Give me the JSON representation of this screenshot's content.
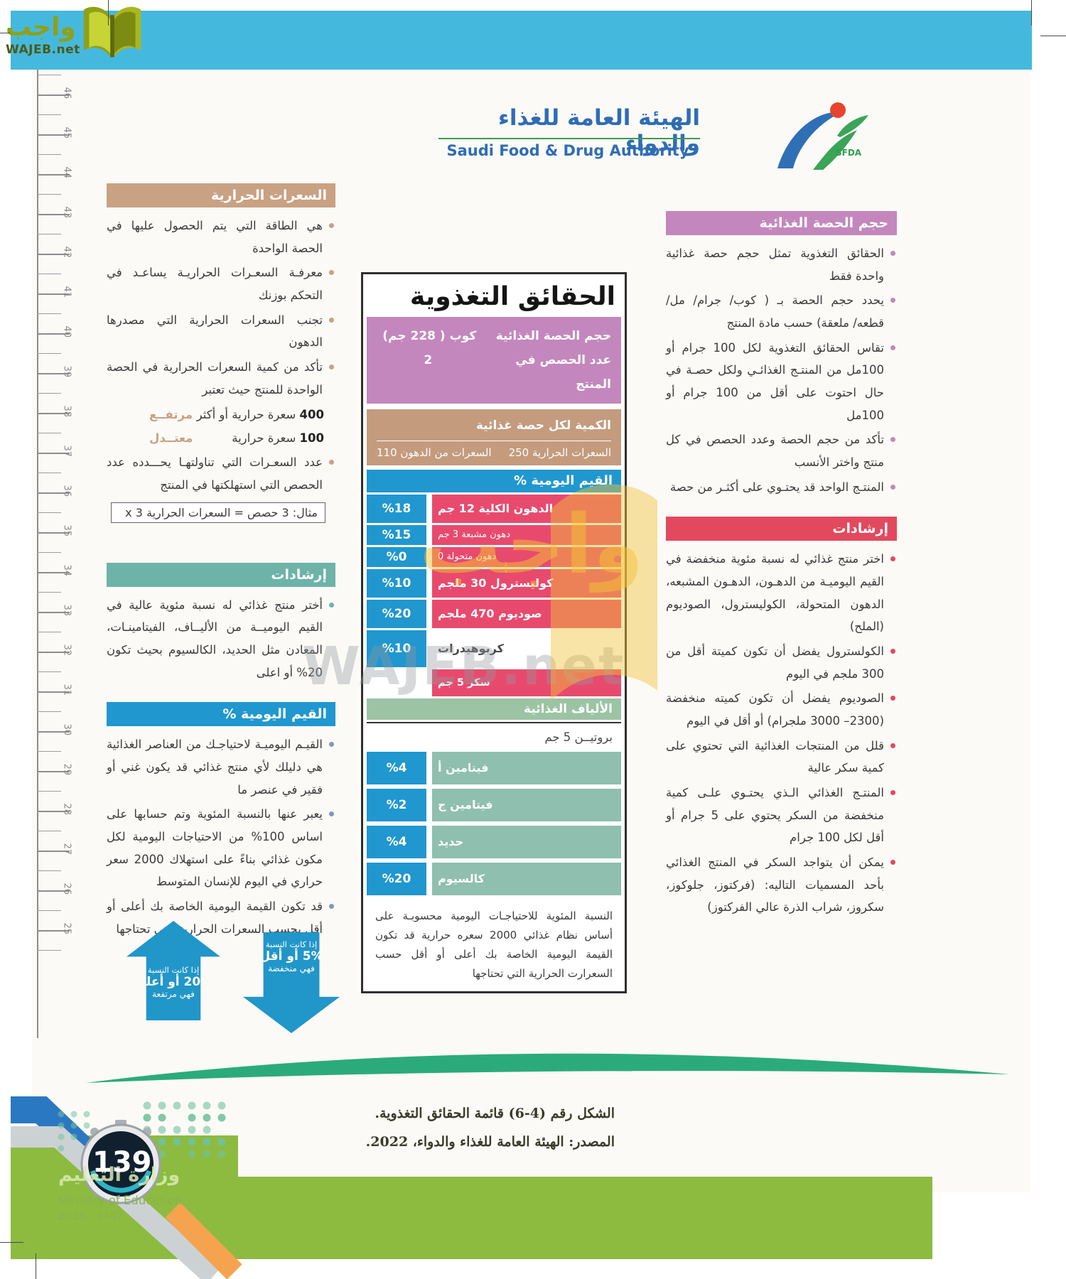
{
  "colors": {
    "topbar": "#45b9dd",
    "tan": "#c9a183",
    "teal": "#6db3a8",
    "blue": "#2097cf",
    "orchid": "#c387bd",
    "row_pink": "#e84a6e",
    "red": "#e2495e",
    "vit_green": "#8fbfae",
    "fiber_green": "#9cc3a4",
    "label_tan": "#c49b7d",
    "lens_green": "#2bab7c",
    "footer_green": "#8cbb40",
    "sfda_blue": "#2e6db4",
    "arrow_blue": "#2196c9"
  },
  "watermark": {
    "arabic": "واجب",
    "domain": "WAJEB.net"
  },
  "topbar": {
    "logo_arabic": "واجب",
    "logo_domain": "WAJEB.net"
  },
  "sfda": {
    "title_ar": "الهيئة العامة للغذاء والدواء",
    "title_en": "Saudi Food & Drug Authority",
    "logo_text": "SFDA"
  },
  "ruler": {
    "start": 46,
    "end": 25
  },
  "left_column": {
    "calories": {
      "title": "السعرات الحرارية",
      "bullets": [
        "هي الطاقة التي يتم الحصول عليها في الحصة الواحدة",
        "معرفـة السعـرات الحراريـة يساعـد في التحكم بوزنك",
        "تجنب السعرات الحرارية التي مصدرها الدهون",
        "تأكد من كمية السعرات الحرارية في الحصة الواحدة للمنتج حيث تعتبر"
      ],
      "ratings": [
        {
          "amount": "400",
          "unit": "سعرة حرارية أو أكثر",
          "level": "مرتفــع"
        },
        {
          "amount": "100",
          "unit": "سعرة حرارية",
          "level": "معتــدل"
        }
      ],
      "final_bullet": "عدد السعـرات التي تناولتهـا يحـــدده عدد الحصص التي استهلكتها في المنتج",
      "example": "مثال:  3 حصص = السعرات الحرارية x 3"
    },
    "guidance": {
      "title": "إرشادات",
      "bullets": [
        "أختر منتج غذائي له نسبة مئوية عالية في القيم اليوميــة من الأليــاف، الفيتامينـات، المعادن مثل الحديد، الكالسيوم بحيث تكون 20% أو اعلى"
      ]
    },
    "daily_values": {
      "title": "القيم اليومية %",
      "bullets": [
        "القيـم اليوميـة لاحتياجـك من العناصر الغذائية هي دليلك لأي منتج غذائي قد يكون غني أو فقير في عنصر ما",
        "يعبر عنها بالنسبة المئوية وتم حسابها على اساس 100% من الاحتياجات اليومية لكل مكون غذائي بناءً على استهلاك 2000 سعر حراري في اليوم للإنسان المتوسط",
        "قد تكون القيمة اليومية الخاصة بك أعلى أو أقل بحسب السعرات الحرارية التي تحتاجها"
      ]
    },
    "arrows": {
      "up": {
        "line1": "إذا كانت النسبة",
        "line2": "20% أو أعلى",
        "line3": "فهي مرتفعة"
      },
      "down": {
        "line1": "إذا كانت النسبة",
        "line2": "5% أو أقل",
        "line3": "فهي منخفضة"
      }
    }
  },
  "label": {
    "title": "الحقائق التغذوية",
    "serving": {
      "rows": [
        {
          "k": "حجم الحصة الغذائية",
          "v": "كوب ( 228 جم)"
        },
        {
          "k": "عدد الحصص في المنتج",
          "v": "2"
        }
      ]
    },
    "per_serving": {
      "header": "الكمية لكل حصة غذائية",
      "right": "السعرات الحرارية  250",
      "left": "السعرات من الدهون  110"
    },
    "dv_header": "القيم اليومية %",
    "rows": [
      {
        "label": "الدهون الكلية  12 جم",
        "pct": "%18",
        "style": "main"
      },
      {
        "label": "دهون مشبعة   3  جم",
        "pct": "%15",
        "style": "sub"
      },
      {
        "label": "دهون متحولة   0",
        "pct": "%0",
        "style": "sub"
      },
      {
        "label": "كوليسترول  30 ملجم",
        "pct": "%10",
        "style": "main"
      },
      {
        "label": "صوديوم   470  ملجم",
        "pct": "%20",
        "style": "main"
      },
      {
        "label": "كربوهيدرات",
        "pct": "%10",
        "style": "plain"
      },
      {
        "label": "سكر   5  جم",
        "pct": "",
        "style": "sugar"
      }
    ],
    "fiber_header": "الألياف الغذائية",
    "protein": "بروتيــن  5  جم",
    "vitamins": [
      {
        "label": "فيتامين أ",
        "pct": "%4"
      },
      {
        "label": "فيتامين ج",
        "pct": "%2"
      },
      {
        "label": "حديد",
        "pct": "%4"
      },
      {
        "label": "كالسيوم",
        "pct": "%20"
      }
    ],
    "footnote": "النسبة المئوية للاحتياجـات اليومية محسوبـة على أساس نظام غذائي 2000 سعره حرارية قد تكون القيمة اليومية الخاصة بك أعلى أو أقل حسب السعرارت الحرارية التي تحتاجها"
  },
  "right_column": {
    "serving_size": {
      "title": "حجم الحصة الغذائية",
      "bullets": [
        "الحقائق التغذوية تمثل حجم حصة غذائية واحدة فقط",
        "يحدد حجم الحصة بـ ( كوب/ جرام/ مل/ قطعه/ ملعقة) حسب مادة المنتج",
        "تقاس الحقائق التغذوية لكل 100 جرام أو 100مل من المنتـج الغذائـي ولكل حصـة في حال احتوت على أقل من 100 جرام أو 100مل",
        "تأكد من حجم الحصة وعدد الحصص في كل منتج واختر الأنسب",
        "المنتـج الواحد قد يحتـوي على أكثـر من حصة"
      ]
    },
    "guidance": {
      "title": "إرشادات",
      "bullets": [
        "اختر منتج غذائي له نسبة مئوية منخفضة في القيم اليوميـة من الدهـون، الدهـون المشبعه، الدهون المتحولة، الكوليسترول، الصوديوم (الملح)",
        "الكولسترول يفضل أن تكون كميتة أقل من 300 ملجم في اليوم",
        "الصوديوم يفضل أن تكون كميته منخفضة (2300– 3000 ملجرام) أو أقل في اليوم",
        "قلل من المنتجات الغذائية التي تحتوي على كمية سكر عالية",
        "المنتـج الغذائي الـذي يحتـوي علـى كمية منخفضة من السكر يحتوي على 5 جرام أو أقل لكل 100 جرام",
        "يمكن أن يتواجد السكر في المنتج الغذائي بأحد المسميات التاليه: (فركتوز، جلوكوز، سكروز، شراب الذرة عالي الفركتوز)"
      ]
    }
  },
  "caption": {
    "line1": "الشكل رقم (4-6)  قائمة الحقائق التغذوية.",
    "line2": "المصدر:  الهيئة العامة للغذاء والدواء، 2022."
  },
  "footer": {
    "page_number": "139",
    "ministry_ar": "وزارة التعليم",
    "ministry_en": "Ministry of Education",
    "years": "2025 - 1447"
  }
}
